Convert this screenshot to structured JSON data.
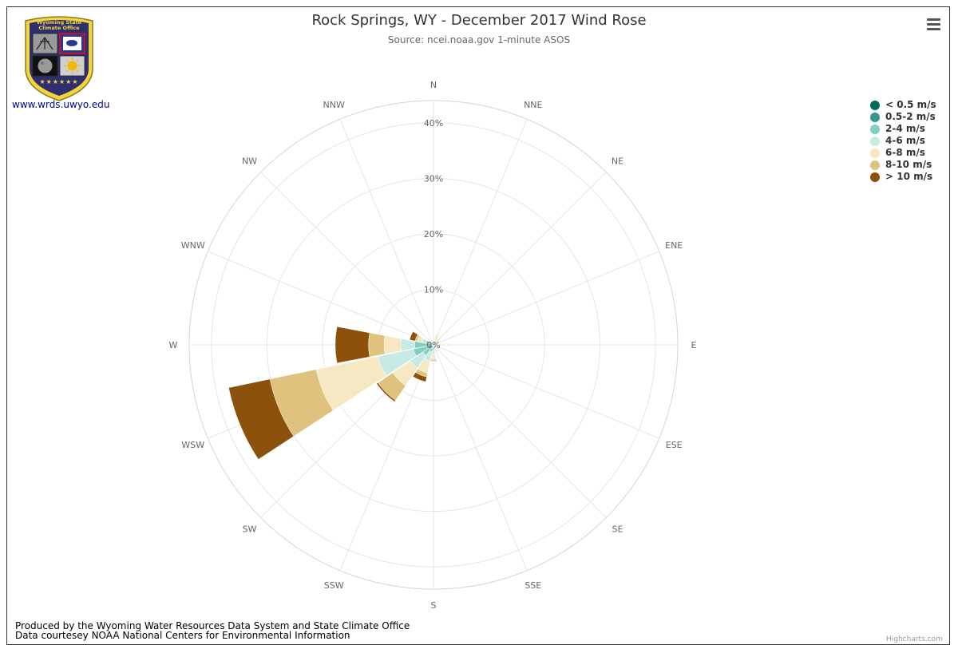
{
  "header": {
    "title": "Rock Springs, WY - December 2017 Wind Rose",
    "subtitle": "Source: ncei.noaa.gov 1-minute ASOS"
  },
  "logo": {
    "line1": "Wyoming State",
    "line2": "Climate Office",
    "link": "www.wrds.uwyo.edu"
  },
  "footer": {
    "line1": "Produced by the Wyoming Water Resources Data System and State Climate Office",
    "line2": "Data courtesey NOAA National Centers for Environmental Information",
    "credit": "Highcharts.com"
  },
  "colors": {
    "bins": [
      "#016c59",
      "#35978f",
      "#80cdc1",
      "#c7eae5",
      "#f6e8c3",
      "#dfc27d",
      "#8c510a"
    ],
    "grid": "#e6e6e6",
    "outer": "#ccd6eb",
    "axis_text": "#666666"
  },
  "chart_data": {
    "type": "windrose",
    "title": "Rock Springs, WY - December 2017 Wind Rose",
    "subtitle": "Source: ncei.noaa.gov 1-minute ASOS",
    "unit": "%",
    "directions": [
      "N",
      "NNE",
      "NE",
      "ENE",
      "E",
      "ESE",
      "SE",
      "SSE",
      "S",
      "SSW",
      "SW",
      "WSW",
      "W",
      "WNW",
      "NW",
      "NNW"
    ],
    "radial_ticks": [
      "0%",
      "10%",
      "20%",
      "30%",
      "40%"
    ],
    "radial_tick_values": [
      0,
      10,
      20,
      30,
      40
    ],
    "rmax": 44,
    "stacked": true,
    "legend_position": "top-right",
    "series": [
      {
        "name": "< 0.5 m/s",
        "values": [
          0.1,
          0.1,
          0.1,
          0.1,
          0.1,
          0.1,
          0.1,
          0.1,
          0.1,
          0.1,
          0.2,
          0.3,
          0.3,
          0.1,
          0.1,
          0.1
        ]
      },
      {
        "name": "0.5-2 m/s",
        "values": [
          0.2,
          0.2,
          0.2,
          0.2,
          0.2,
          0.2,
          0.2,
          0.2,
          0.3,
          0.4,
          0.6,
          0.8,
          0.7,
          0.4,
          0.2,
          0.2
        ]
      },
      {
        "name": "2-4 m/s",
        "values": [
          0.2,
          0.3,
          0.4,
          0.3,
          0.3,
          0.2,
          0.2,
          0.3,
          0.5,
          0.8,
          1.5,
          2.6,
          2.4,
          0.9,
          0.3,
          0.2
        ]
      },
      {
        "name": "4-6 m/s",
        "values": [
          0.1,
          0.3,
          0.2,
          0.1,
          0.1,
          0.0,
          0.0,
          0.1,
          0.8,
          1.7,
          2.8,
          6.5,
          2.5,
          0.7,
          0.1,
          0.1
        ]
      },
      {
        "name": "6-8 m/s",
        "values": [
          0.1,
          0.9,
          0.2,
          0.1,
          0.0,
          0.0,
          0.0,
          0.0,
          0.9,
          2.2,
          3.8,
          11.4,
          3.0,
          0.9,
          0.0,
          0.0
        ]
      },
      {
        "name": "8-10 m/s",
        "values": [
          0.0,
          0.1,
          0.0,
          0.0,
          0.0,
          0.0,
          0.0,
          0.0,
          0.3,
          0.7,
          3.2,
          8.5,
          2.8,
          0.4,
          0.0,
          0.0
        ]
      },
      {
        "name": "> 10 m/s",
        "values": [
          0.0,
          0.0,
          0.0,
          0.0,
          0.0,
          0.0,
          0.0,
          0.0,
          0.1,
          0.9,
          0.3,
          7.6,
          6.0,
          1.0,
          0.0,
          0.0
        ]
      }
    ]
  }
}
